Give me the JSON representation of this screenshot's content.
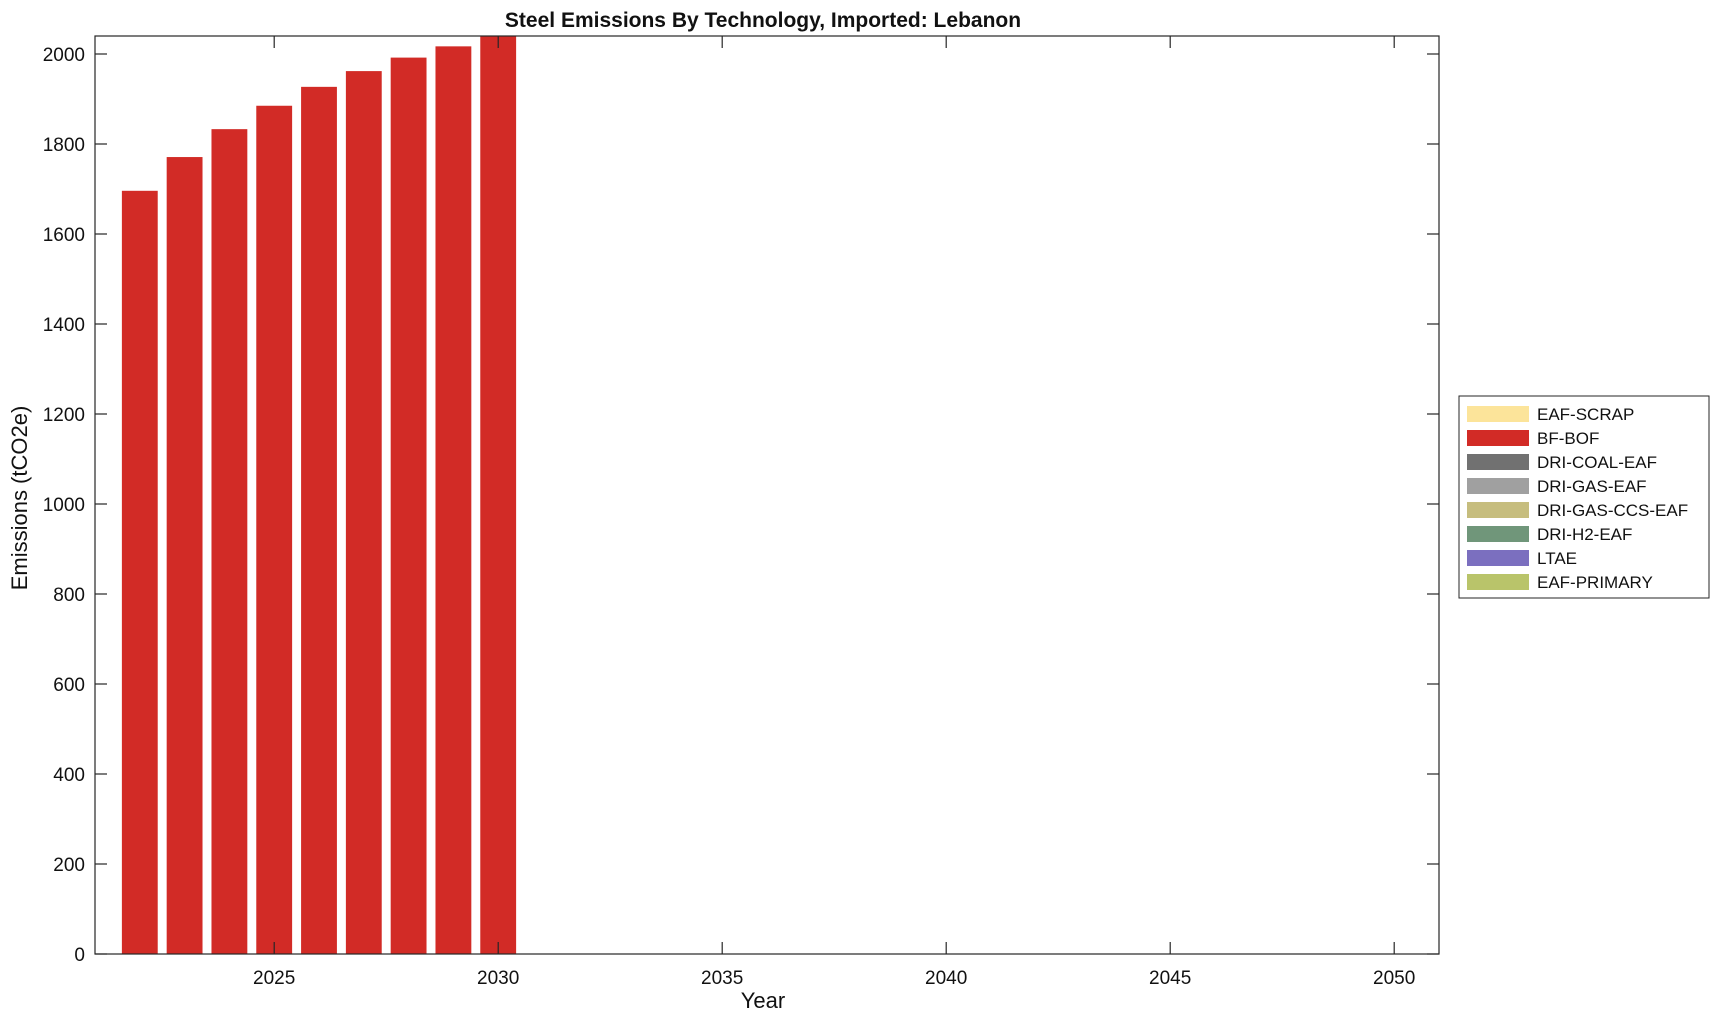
{
  "chart_data": {
    "type": "bar",
    "stacked": true,
    "title": "Steel Emissions By Technology, Imported: Lebanon",
    "xlabel": "Year",
    "ylabel": "Emissions (tCO2e)",
    "xlim": [
      2021,
      2051
    ],
    "ylim": [
      0,
      2040
    ],
    "xticks": [
      2025,
      2030,
      2035,
      2040,
      2045,
      2050
    ],
    "yticks": [
      0,
      200,
      400,
      600,
      800,
      1000,
      1200,
      1400,
      1600,
      1800,
      2000
    ],
    "grid": false,
    "legend_position": "right",
    "x": [
      2022,
      2023,
      2024,
      2025,
      2026,
      2027,
      2028,
      2029,
      2030
    ],
    "series": [
      {
        "name": "EAF-PRIMARY",
        "color": "#b9c46a",
        "values": [
          0,
          0,
          0,
          0,
          0,
          0,
          0,
          0,
          0
        ]
      },
      {
        "name": "LTAE",
        "color": "#7b6fbf",
        "values": [
          0,
          0,
          0,
          0,
          0,
          0,
          0,
          0,
          0
        ]
      },
      {
        "name": "DRI-H2-EAF",
        "color": "#70967a",
        "values": [
          0,
          0,
          0,
          0,
          0,
          0,
          0,
          0,
          0
        ]
      },
      {
        "name": "DRI-GAS-CCS-EAF",
        "color": "#c6bd7e",
        "values": [
          0,
          0,
          0,
          0,
          0,
          0,
          0,
          0,
          0
        ]
      },
      {
        "name": "DRI-GAS-EAF",
        "color": "#a0a0a0",
        "values": [
          0,
          0,
          0,
          0,
          0,
          0,
          0,
          0,
          0
        ]
      },
      {
        "name": "DRI-COAL-EAF",
        "color": "#717171",
        "values": [
          0,
          0,
          0,
          0,
          0,
          0,
          0,
          0,
          0
        ]
      },
      {
        "name": "BF-BOF",
        "color": "#d22b26",
        "values": [
          1696,
          1771,
          1833,
          1885,
          1927,
          1962,
          1992,
          2017,
          2040
        ]
      },
      {
        "name": "EAF-SCRAP",
        "color": "#fce49a",
        "values": [
          0,
          0,
          0,
          0,
          0,
          0,
          0,
          0,
          0
        ]
      }
    ]
  }
}
